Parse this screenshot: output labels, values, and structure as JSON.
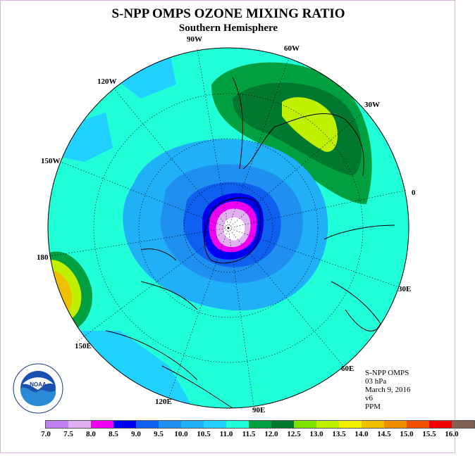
{
  "title": "S-NPP OMPS OZONE MIXING RATIO",
  "subtitle": "Southern Hemisphere",
  "longitude_labels": [
    "90W",
    "60W",
    "120W",
    "30W",
    "150W",
    "0",
    "180",
    "30E",
    "150E",
    "60E",
    "120E",
    "90E"
  ],
  "info": {
    "product": "S-NPP OMPS",
    "level": "03 hPa",
    "date": "March 9, 2016",
    "version": "v6",
    "units": "PPM"
  },
  "logo_text": "NOAA",
  "colorbar": {
    "ticks": [
      "7.0",
      "7.5",
      "8.0",
      "8.5",
      "9.0",
      "9.5",
      "10.0",
      "10.5",
      "11.0",
      "11.5",
      "12.0",
      "12.5",
      "13.0",
      "13.5",
      "14.0",
      "14.5",
      "15.0",
      "15.5",
      "16.0"
    ],
    "colors": [
      "#c080f0",
      "#e0b0f0",
      "#f000f0",
      "#0000f0",
      "#1060f0",
      "#2090f0",
      "#20b0f8",
      "#20d0ff",
      "#20ffd8",
      "#00a040",
      "#007830",
      "#80e000",
      "#c0f000",
      "#f0f000",
      "#f0c000",
      "#f09000",
      "#f05000",
      "#f00000",
      "#806050"
    ]
  },
  "colors": {
    "ocean_base": "#20ffd8",
    "coast": "#000000"
  }
}
